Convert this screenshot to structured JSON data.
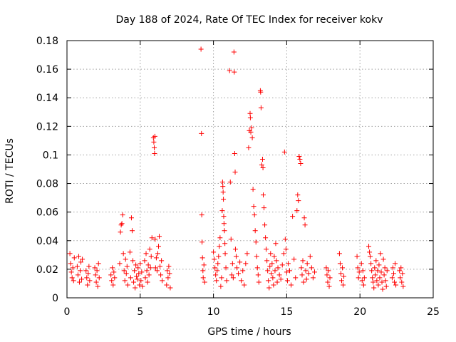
{
  "chart_data": {
    "type": "scatter",
    "title": "Day 188 of 2024, Rate Of TEC Index for receiver kokv",
    "xlabel": "GPS time / hours",
    "ylabel": "ROTI / TECUs",
    "xlim": [
      0,
      25
    ],
    "ylim": [
      0,
      0.18
    ],
    "x_ticks": [
      0,
      5,
      10,
      15,
      20,
      25
    ],
    "x_tick_labels": [
      "0",
      "5",
      "10",
      "15",
      "20",
      "25"
    ],
    "y_ticks": [
      0,
      0.02,
      0.04,
      0.06,
      0.08,
      0.1,
      0.12,
      0.14,
      0.16,
      0.18
    ],
    "y_tick_labels": [
      "0",
      "0.02",
      "0.04",
      "0.06",
      "0.08",
      "0.1",
      "0.12",
      "0.14",
      "0.16",
      "0.18"
    ],
    "grid": true,
    "marker": "+",
    "color": "#ff0000",
    "series": [
      {
        "name": "ROTI",
        "points": [
          [
            0.2,
            0.031
          ],
          [
            0.25,
            0.024
          ],
          [
            0.3,
            0.018
          ],
          [
            0.35,
            0.014
          ],
          [
            0.4,
            0.021
          ],
          [
            0.45,
            0.012
          ],
          [
            0.5,
            0.028
          ],
          [
            0.7,
            0.022
          ],
          [
            0.75,
            0.016
          ],
          [
            0.8,
            0.029
          ],
          [
            0.85,
            0.011
          ],
          [
            0.9,
            0.019
          ],
          [
            0.95,
            0.025
          ],
          [
            1.0,
            0.013
          ],
          [
            1.05,
            0.027
          ],
          [
            1.3,
            0.019
          ],
          [
            1.35,
            0.014
          ],
          [
            1.4,
            0.009
          ],
          [
            1.45,
            0.017
          ],
          [
            1.5,
            0.022
          ],
          [
            1.55,
            0.012
          ],
          [
            1.9,
            0.021
          ],
          [
            1.95,
            0.016
          ],
          [
            2.0,
            0.011
          ],
          [
            2.05,
            0.019
          ],
          [
            2.1,
            0.008
          ],
          [
            2.15,
            0.024
          ],
          [
            2.2,
            0.014
          ],
          [
            3.0,
            0.016
          ],
          [
            3.05,
            0.012
          ],
          [
            3.1,
            0.021
          ],
          [
            3.15,
            0.009
          ],
          [
            3.2,
            0.018
          ],
          [
            3.25,
            0.014
          ],
          [
            3.6,
            0.024
          ],
          [
            3.65,
            0.046
          ],
          [
            3.7,
            0.051
          ],
          [
            3.75,
            0.052
          ],
          [
            3.8,
            0.058
          ],
          [
            3.85,
            0.031
          ],
          [
            3.9,
            0.019
          ],
          [
            3.95,
            0.012
          ],
          [
            4.0,
            0.027
          ],
          [
            4.05,
            0.017
          ],
          [
            4.1,
            0.022
          ],
          [
            4.15,
            0.009
          ],
          [
            4.3,
            0.032
          ],
          [
            4.35,
            0.014
          ],
          [
            4.4,
            0.056
          ],
          [
            4.45,
            0.047
          ],
          [
            4.5,
            0.026
          ],
          [
            4.55,
            0.011
          ],
          [
            4.6,
            0.019
          ],
          [
            4.65,
            0.007
          ],
          [
            4.7,
            0.023
          ],
          [
            4.75,
            0.015
          ],
          [
            4.8,
            0.013
          ],
          [
            4.85,
            0.021
          ],
          [
            4.9,
            0.017
          ],
          [
            4.95,
            0.009
          ],
          [
            5.0,
            0.024
          ],
          [
            5.05,
            0.012
          ],
          [
            5.1,
            0.018
          ],
          [
            5.15,
            0.008
          ],
          [
            5.3,
            0.026
          ],
          [
            5.35,
            0.014
          ],
          [
            5.4,
            0.031
          ],
          [
            5.45,
            0.019
          ],
          [
            5.5,
            0.011
          ],
          [
            5.55,
            0.023
          ],
          [
            5.6,
            0.016
          ],
          [
            5.65,
            0.034
          ],
          [
            5.7,
            0.021
          ],
          [
            5.75,
            0.029
          ],
          [
            5.8,
            0.042
          ],
          [
            5.9,
            0.112
          ],
          [
            5.93,
            0.109
          ],
          [
            5.96,
            0.105
          ],
          [
            5.98,
            0.101
          ],
          [
            6.0,
            0.113
          ],
          [
            6.02,
            0.041
          ],
          [
            6.05,
            0.021
          ],
          [
            6.1,
            0.028
          ],
          [
            6.15,
            0.019
          ],
          [
            6.2,
            0.031
          ],
          [
            6.25,
            0.036
          ],
          [
            6.3,
            0.043
          ],
          [
            6.35,
            0.022
          ],
          [
            6.4,
            0.016
          ],
          [
            6.45,
            0.026
          ],
          [
            6.5,
            0.012
          ],
          [
            6.8,
            0.009
          ],
          [
            6.85,
            0.019
          ],
          [
            6.9,
            0.014
          ],
          [
            6.95,
            0.022
          ],
          [
            7.0,
            0.017
          ],
          [
            7.05,
            0.007
          ],
          [
            9.15,
            0.174
          ],
          [
            9.18,
            0.115
          ],
          [
            9.2,
            0.058
          ],
          [
            9.22,
            0.039
          ],
          [
            9.25,
            0.028
          ],
          [
            9.28,
            0.019
          ],
          [
            9.3,
            0.014
          ],
          [
            9.35,
            0.023
          ],
          [
            9.4,
            0.011
          ],
          [
            10.0,
            0.032
          ],
          [
            10.05,
            0.027
          ],
          [
            10.1,
            0.021
          ],
          [
            10.15,
            0.016
          ],
          [
            10.2,
            0.012
          ],
          [
            10.25,
            0.019
          ],
          [
            10.3,
            0.024
          ],
          [
            10.35,
            0.029
          ],
          [
            10.4,
            0.036
          ],
          [
            10.45,
            0.042
          ],
          [
            10.5,
            0.008
          ],
          [
            10.55,
            0.014
          ],
          [
            10.6,
            0.061
          ],
          [
            10.62,
            0.081
          ],
          [
            10.64,
            0.078
          ],
          [
            10.66,
            0.074
          ],
          [
            10.68,
            0.069
          ],
          [
            10.7,
            0.057
          ],
          [
            10.72,
            0.052
          ],
          [
            10.75,
            0.047
          ],
          [
            10.78,
            0.038
          ],
          [
            10.8,
            0.031
          ],
          [
            10.85,
            0.021
          ],
          [
            10.9,
            0.012
          ],
          [
            11.1,
            0.159
          ],
          [
            11.15,
            0.081
          ],
          [
            11.2,
            0.041
          ],
          [
            11.25,
            0.016
          ],
          [
            11.3,
            0.024
          ],
          [
            11.35,
            0.014
          ],
          [
            11.4,
            0.172
          ],
          [
            11.42,
            0.158
          ],
          [
            11.45,
            0.101
          ],
          [
            11.48,
            0.088
          ],
          [
            11.5,
            0.034
          ],
          [
            11.55,
            0.029
          ],
          [
            11.6,
            0.021
          ],
          [
            11.7,
            0.017
          ],
          [
            11.8,
            0.025
          ],
          [
            11.9,
            0.012
          ],
          [
            12.0,
            0.019
          ],
          [
            12.1,
            0.009
          ],
          [
            12.2,
            0.024
          ],
          [
            12.3,
            0.031
          ],
          [
            12.4,
            0.105
          ],
          [
            12.45,
            0.117
          ],
          [
            12.5,
            0.129
          ],
          [
            12.52,
            0.126
          ],
          [
            12.55,
            0.116
          ],
          [
            12.6,
            0.119
          ],
          [
            12.65,
            0.112
          ],
          [
            12.7,
            0.076
          ],
          [
            12.75,
            0.064
          ],
          [
            12.8,
            0.058
          ],
          [
            12.85,
            0.047
          ],
          [
            12.9,
            0.039
          ],
          [
            12.95,
            0.029
          ],
          [
            13.0,
            0.021
          ],
          [
            13.05,
            0.016
          ],
          [
            13.1,
            0.011
          ],
          [
            13.2,
            0.145
          ],
          [
            13.22,
            0.144
          ],
          [
            13.25,
            0.133
          ],
          [
            13.3,
            0.093
          ],
          [
            13.35,
            0.097
          ],
          [
            13.38,
            0.091
          ],
          [
            13.4,
            0.072
          ],
          [
            13.45,
            0.063
          ],
          [
            13.5,
            0.051
          ],
          [
            13.55,
            0.042
          ],
          [
            13.6,
            0.034
          ],
          [
            13.65,
            0.026
          ],
          [
            13.7,
            0.019
          ],
          [
            13.75,
            0.012
          ],
          [
            13.8,
            0.007
          ],
          [
            13.85,
            0.022
          ],
          [
            13.9,
            0.031
          ],
          [
            13.95,
            0.017
          ],
          [
            14.0,
            0.024
          ],
          [
            14.05,
            0.014
          ],
          [
            14.1,
            0.009
          ],
          [
            14.15,
            0.029
          ],
          [
            14.2,
            0.019
          ],
          [
            14.25,
            0.038
          ],
          [
            14.3,
            0.026
          ],
          [
            14.35,
            0.011
          ],
          [
            14.4,
            0.021
          ],
          [
            14.5,
            0.016
          ],
          [
            14.6,
            0.013
          ],
          [
            14.7,
            0.023
          ],
          [
            14.8,
            0.031
          ],
          [
            14.85,
            0.102
          ],
          [
            14.9,
            0.041
          ],
          [
            14.95,
            0.034
          ],
          [
            15.0,
            0.018
          ],
          [
            15.05,
            0.012
          ],
          [
            15.1,
            0.024
          ],
          [
            15.2,
            0.019
          ],
          [
            15.3,
            0.009
          ],
          [
            15.4,
            0.057
          ],
          [
            15.5,
            0.027
          ],
          [
            15.6,
            0.014
          ],
          [
            15.7,
            0.061
          ],
          [
            15.75,
            0.072
          ],
          [
            15.8,
            0.068
          ],
          [
            15.85,
            0.099
          ],
          [
            15.9,
            0.097
          ],
          [
            15.95,
            0.094
          ],
          [
            16.0,
            0.021
          ],
          [
            16.05,
            0.016
          ],
          [
            16.1,
            0.026
          ],
          [
            16.15,
            0.011
          ],
          [
            16.2,
            0.056
          ],
          [
            16.25,
            0.051
          ],
          [
            16.3,
            0.019
          ],
          [
            16.35,
            0.013
          ],
          [
            16.4,
            0.024
          ],
          [
            16.5,
            0.017
          ],
          [
            16.6,
            0.029
          ],
          [
            16.7,
            0.021
          ],
          [
            16.8,
            0.014
          ],
          [
            16.9,
            0.018
          ],
          [
            17.7,
            0.021
          ],
          [
            17.75,
            0.016
          ],
          [
            17.8,
            0.011
          ],
          [
            17.85,
            0.019
          ],
          [
            17.9,
            0.008
          ],
          [
            17.95,
            0.014
          ],
          [
            18.6,
            0.031
          ],
          [
            18.65,
            0.024
          ],
          [
            18.7,
            0.017
          ],
          [
            18.75,
            0.012
          ],
          [
            18.8,
            0.021
          ],
          [
            18.85,
            0.009
          ],
          [
            18.9,
            0.015
          ],
          [
            19.8,
            0.029
          ],
          [
            19.85,
            0.021
          ],
          [
            19.9,
            0.014
          ],
          [
            19.95,
            0.018
          ],
          [
            20.1,
            0.024
          ],
          [
            20.15,
            0.012
          ],
          [
            20.2,
            0.019
          ],
          [
            20.25,
            0.009
          ],
          [
            20.3,
            0.014
          ],
          [
            20.6,
            0.036
          ],
          [
            20.65,
            0.032
          ],
          [
            20.7,
            0.029
          ],
          [
            20.75,
            0.024
          ],
          [
            20.8,
            0.019
          ],
          [
            20.85,
            0.014
          ],
          [
            20.9,
            0.011
          ],
          [
            20.95,
            0.007
          ],
          [
            21.0,
            0.021
          ],
          [
            21.05,
            0.016
          ],
          [
            21.1,
            0.026
          ],
          [
            21.15,
            0.012
          ],
          [
            21.2,
            0.019
          ],
          [
            21.25,
            0.009
          ],
          [
            21.3,
            0.023
          ],
          [
            21.35,
            0.014
          ],
          [
            21.4,
            0.031
          ],
          [
            21.45,
            0.018
          ],
          [
            21.5,
            0.011
          ],
          [
            21.55,
            0.006
          ],
          [
            21.6,
            0.027
          ],
          [
            21.65,
            0.016
          ],
          [
            21.7,
            0.021
          ],
          [
            21.75,
            0.012
          ],
          [
            21.8,
            0.008
          ],
          [
            21.85,
            0.019
          ],
          [
            22.2,
            0.014
          ],
          [
            22.25,
            0.021
          ],
          [
            22.3,
            0.017
          ],
          [
            22.35,
            0.011
          ],
          [
            22.4,
            0.024
          ],
          [
            22.45,
            0.009
          ],
          [
            22.7,
            0.019
          ],
          [
            22.75,
            0.014
          ],
          [
            22.8,
            0.021
          ],
          [
            22.85,
            0.011
          ],
          [
            22.9,
            0.017
          ],
          [
            22.95,
            0.008
          ]
        ]
      }
    ]
  }
}
